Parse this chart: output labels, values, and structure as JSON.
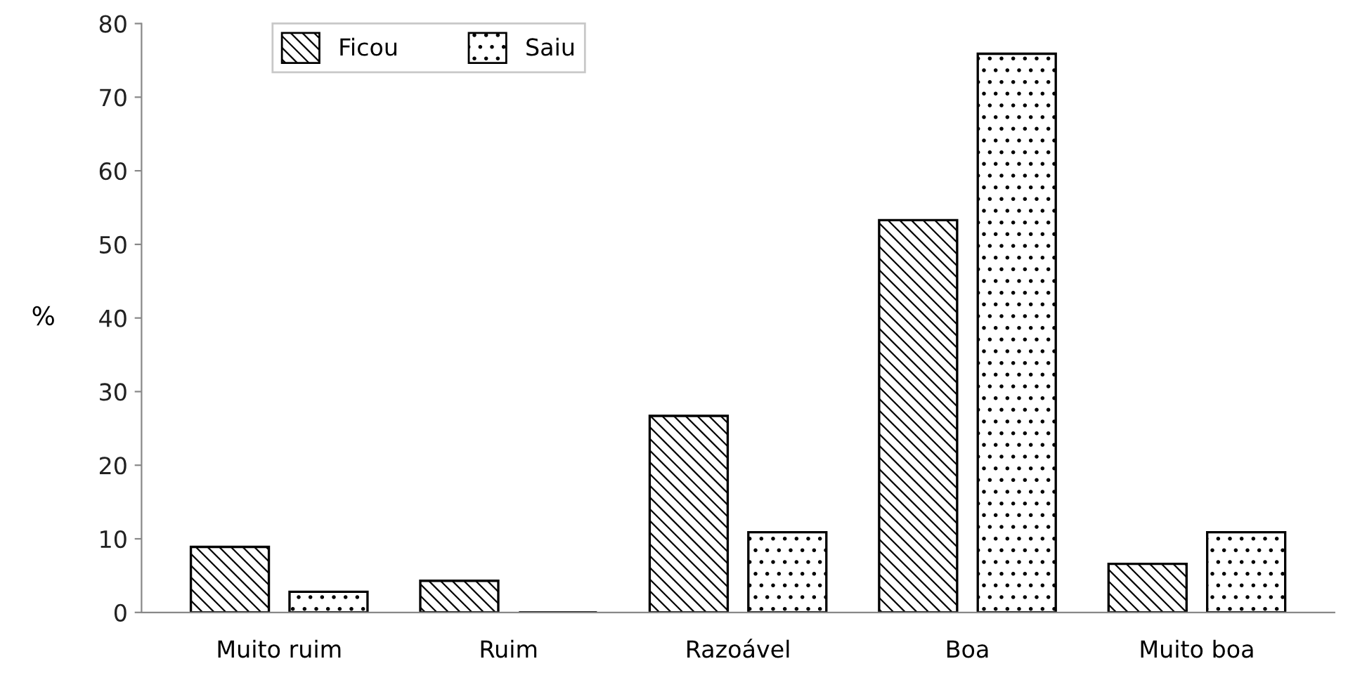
{
  "chart_data": {
    "type": "bar",
    "ylabel": "%",
    "categories": [
      "Muito ruim",
      "Ruim",
      "Razoável",
      "Boa",
      "Muito boa"
    ],
    "series": [
      {
        "name": "Ficou",
        "color": "#000000",
        "values": [
          8.9,
          4.3,
          26.7,
          53.3,
          6.6
        ]
      },
      {
        "name": "Saiu",
        "color": "#000000",
        "values": [
          2.8,
          0,
          10.9,
          75.9,
          10.9
        ]
      }
    ],
    "ylim": [
      0,
      80
    ],
    "yticks": [
      0,
      10,
      20,
      30,
      40,
      50,
      60,
      70,
      80
    ],
    "grid": false,
    "legend": "top left"
  }
}
